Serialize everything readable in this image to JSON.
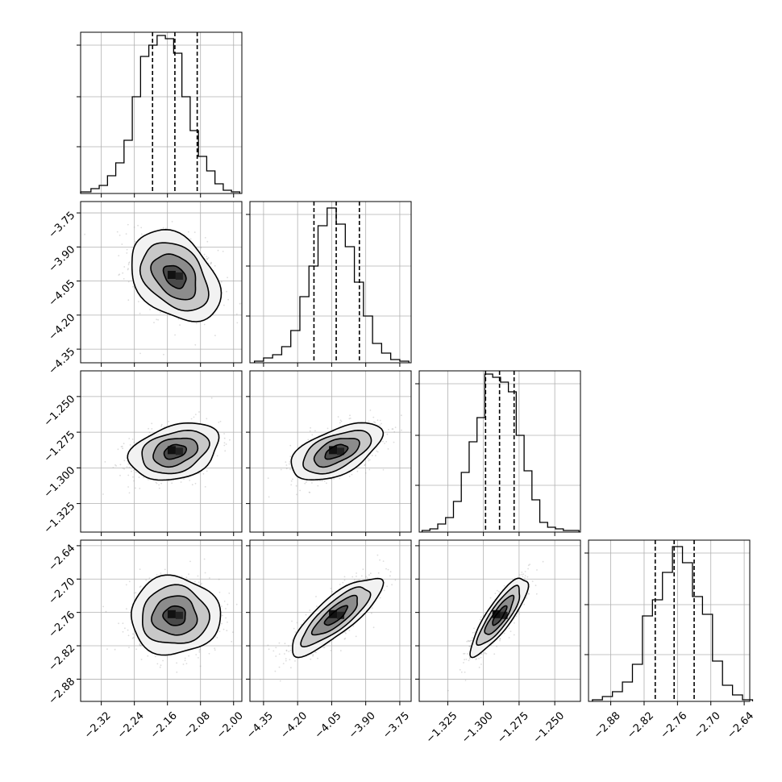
{
  "chart_data": {
    "type": "corner",
    "parameters": [
      {
        "range": [
          -2.37,
          -1.98
        ],
        "ticks": [
          "-2.32",
          "-2.24",
          "-2.16",
          "-2.08",
          "-2.00"
        ],
        "tick_values": [
          -2.32,
          -2.24,
          -2.16,
          -2.08,
          -2.0
        ],
        "quantiles": [
          -2.196,
          -2.142,
          -2.088
        ],
        "hist_edges": [
          -2.37,
          -2.345,
          -2.325,
          -2.305,
          -2.285,
          -2.265,
          -2.245,
          -2.225,
          -2.205,
          -2.185,
          -2.165,
          -2.145,
          -2.125,
          -2.105,
          -2.085,
          -2.065,
          -2.045,
          -2.025,
          -2.005,
          -1.985
        ],
        "hist_heights": [
          0.01,
          0.03,
          0.05,
          0.11,
          0.19,
          0.33,
          0.6,
          0.85,
          0.92,
          0.98,
          0.96,
          0.87,
          0.6,
          0.39,
          0.23,
          0.14,
          0.06,
          0.02,
          0.01
        ]
      },
      {
        "range": [
          -4.41,
          -3.7
        ],
        "ticks": [
          "-4.35",
          "-4.20",
          "-4.05",
          "-3.90",
          "-3.75"
        ],
        "tick_values": [
          -4.35,
          -4.2,
          -4.05,
          -3.9,
          -3.75
        ],
        "quantiles": [
          -4.128,
          -4.03,
          -3.928
        ],
        "hist_edges": [
          -4.39,
          -4.35,
          -4.31,
          -4.27,
          -4.23,
          -4.19,
          -4.15,
          -4.11,
          -4.07,
          -4.03,
          -3.99,
          -3.95,
          -3.91,
          -3.87,
          -3.83,
          -3.79,
          -3.75,
          -3.71
        ],
        "hist_heights": [
          0.01,
          0.03,
          0.05,
          0.1,
          0.2,
          0.41,
          0.6,
          0.85,
          0.96,
          0.86,
          0.72,
          0.5,
          0.29,
          0.12,
          0.06,
          0.02,
          0.01
        ]
      },
      {
        "range": [
          -1.345,
          -1.232
        ],
        "ticks": [
          "-1.325",
          "-1.300",
          "-1.275",
          "-1.250"
        ],
        "tick_values": [
          -1.325,
          -1.3,
          -1.275,
          -1.25
        ],
        "quantiles": [
          -1.2985,
          -1.2887,
          -1.2785
        ],
        "hist_edges": [
          -1.343,
          -1.3375,
          -1.332,
          -1.3265,
          -1.321,
          -1.3155,
          -1.31,
          -1.3045,
          -1.299,
          -1.2935,
          -1.288,
          -1.2825,
          -1.277,
          -1.2715,
          -1.266,
          -1.2605,
          -1.255,
          -1.2495,
          -1.244,
          -1.2385,
          -1.233
        ],
        "hist_heights": [
          0.01,
          0.02,
          0.05,
          0.09,
          0.19,
          0.37,
          0.56,
          0.71,
          0.98,
          0.96,
          0.93,
          0.87,
          0.6,
          0.38,
          0.2,
          0.06,
          0.03,
          0.02,
          0.01,
          0.01
        ]
      },
      {
        "range": [
          -2.92,
          -2.63
        ],
        "ticks": [
          "-2.88",
          "-2.82",
          "-2.76",
          "-2.70",
          "-2.64"
        ],
        "tick_values": [
          -2.88,
          -2.82,
          -2.76,
          -2.7,
          -2.64
        ],
        "quantiles": [
          -2.8,
          -2.766,
          -2.73
        ],
        "hist_edges": [
          -2.913,
          -2.895,
          -2.877,
          -2.859,
          -2.841,
          -2.823,
          -2.805,
          -2.787,
          -2.769,
          -2.751,
          -2.733,
          -2.715,
          -2.697,
          -2.679,
          -2.661,
          -2.643,
          -2.625
        ],
        "hist_heights": [
          0.01,
          0.03,
          0.06,
          0.12,
          0.23,
          0.53,
          0.63,
          0.8,
          0.96,
          0.86,
          0.65,
          0.54,
          0.25,
          0.1,
          0.04,
          0.01
        ]
      }
    ],
    "pairs": [
      {
        "x": 0,
        "y": 1,
        "mean": [
          -2.142,
          -4.03
        ],
        "correlation": -0.35
      },
      {
        "x": 0,
        "y": 2,
        "mean": [
          -2.142,
          -1.2887
        ],
        "correlation": 0.3
      },
      {
        "x": 1,
        "y": 2,
        "mean": [
          -4.03,
          -1.2887
        ],
        "correlation": 0.55
      },
      {
        "x": 0,
        "y": 3,
        "mean": [
          -2.142,
          -2.766
        ],
        "correlation": 0.0
      },
      {
        "x": 1,
        "y": 3,
        "mean": [
          -4.03,
          -2.766
        ],
        "correlation": 0.82
      },
      {
        "x": 2,
        "y": 3,
        "mean": [
          -1.2887,
          -2.766
        ],
        "correlation": 0.85
      }
    ],
    "grid": true,
    "title": "",
    "xlabel": "",
    "ylabel": ""
  }
}
